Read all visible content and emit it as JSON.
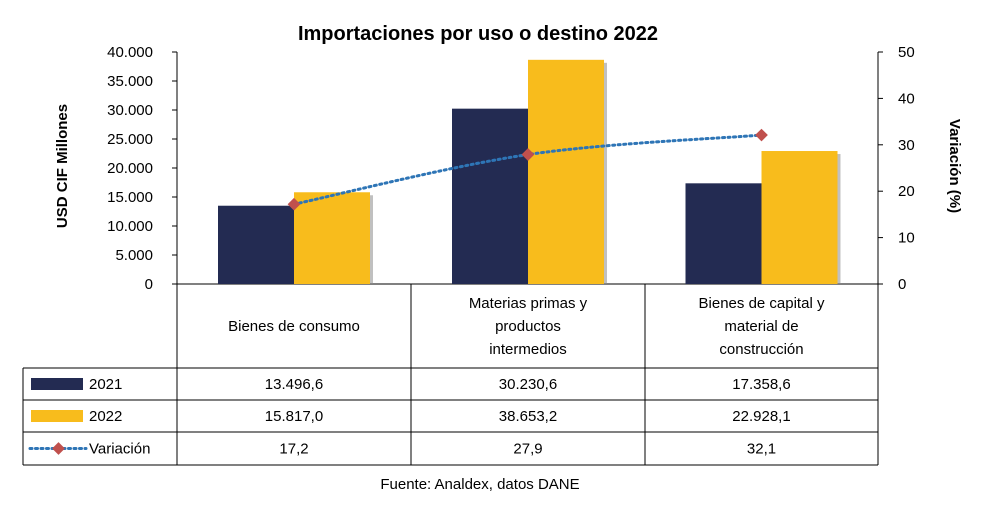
{
  "chart_data": {
    "type": "bar",
    "title": "Importaciones por uso o destino 2022",
    "ylabel": "USD CIF Millones",
    "y2label": "Variación (%)",
    "ylim": [
      0,
      40000
    ],
    "y2lim": [
      0,
      50
    ],
    "yticks": [
      "0",
      "5.000",
      "10.000",
      "15.000",
      "20.000",
      "25.000",
      "30.000",
      "35.000",
      "40.000"
    ],
    "y2ticks": [
      "0",
      "10",
      "20",
      "30",
      "40",
      "50"
    ],
    "categories": [
      [
        "Bienes de consumo"
      ],
      [
        "Materias primas y",
        "productos",
        "intermedios"
      ],
      [
        "Bienes de capital y",
        "material de",
        "construcción"
      ]
    ],
    "series": [
      {
        "name": "2021",
        "type": "bar",
        "axis": "left",
        "color": "#232B52",
        "values": [
          13496.6,
          30230.6,
          17358.6
        ],
        "labels": [
          "13.496,6",
          "30.230,6",
          "17.358,6"
        ]
      },
      {
        "name": "2022",
        "type": "bar",
        "axis": "left",
        "color": "#F8BC1C",
        "values": [
          15817.0,
          38653.2,
          22928.1
        ],
        "labels": [
          "15.817,0",
          "38.653,2",
          "22.928,1"
        ]
      },
      {
        "name": "Variación",
        "type": "line",
        "axis": "right",
        "color": "#2E75B6",
        "marker_color": "#C0504D",
        "values": [
          17.2,
          27.9,
          32.1
        ],
        "labels": [
          "17,2",
          "27,9",
          "32,1"
        ]
      }
    ],
    "source": "Fuente: Analdex, datos DANE"
  }
}
